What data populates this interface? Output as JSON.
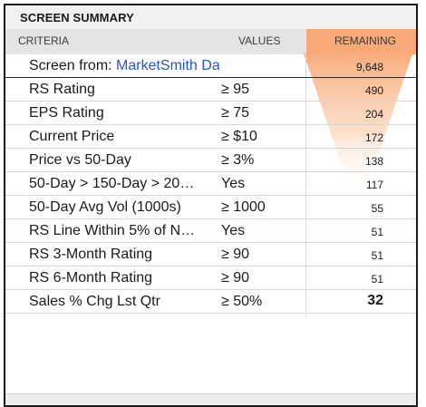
{
  "panel": {
    "title": "SCREEN SUMMARY"
  },
  "headers": {
    "criteria": "CRITERIA",
    "values": "VALUES",
    "remaining": "REMAINING"
  },
  "colors": {
    "remaining_header_bg": "#f8a977",
    "funnel_top": "#f8a977",
    "link": "#2356c8"
  },
  "source_row": {
    "label_prefix": "Screen from: ",
    "link_text": "MarketSmith Database",
    "remaining": "9,648"
  },
  "criteria_rows": [
    {
      "criteria": "RS Rating",
      "value": "≥ 95",
      "remaining": "490"
    },
    {
      "criteria": "EPS Rating",
      "value": "≥ 75",
      "remaining": "204"
    },
    {
      "criteria": "Current Price",
      "value": "≥ $10",
      "remaining": "172"
    },
    {
      "criteria": "Price vs 50-Day",
      "value": "≥ 3%",
      "remaining": "138"
    },
    {
      "criteria": "50-Day > 150-Day > 20…",
      "value": "Yes",
      "remaining": "117"
    },
    {
      "criteria": "50-Day Avg Vol (1000s)",
      "value": "≥ 1000",
      "remaining": "55"
    },
    {
      "criteria": "RS Line Within 5% of N…",
      "value": "Yes",
      "remaining": "51"
    },
    {
      "criteria": "RS 3-Month Rating",
      "value": "≥ 90",
      "remaining": "51"
    },
    {
      "criteria": "RS 6-Month Rating",
      "value": "≥ 90",
      "remaining": "51"
    },
    {
      "criteria": "Sales % Chg Lst Qtr",
      "value": "≥ 50%",
      "remaining": "32"
    }
  ]
}
